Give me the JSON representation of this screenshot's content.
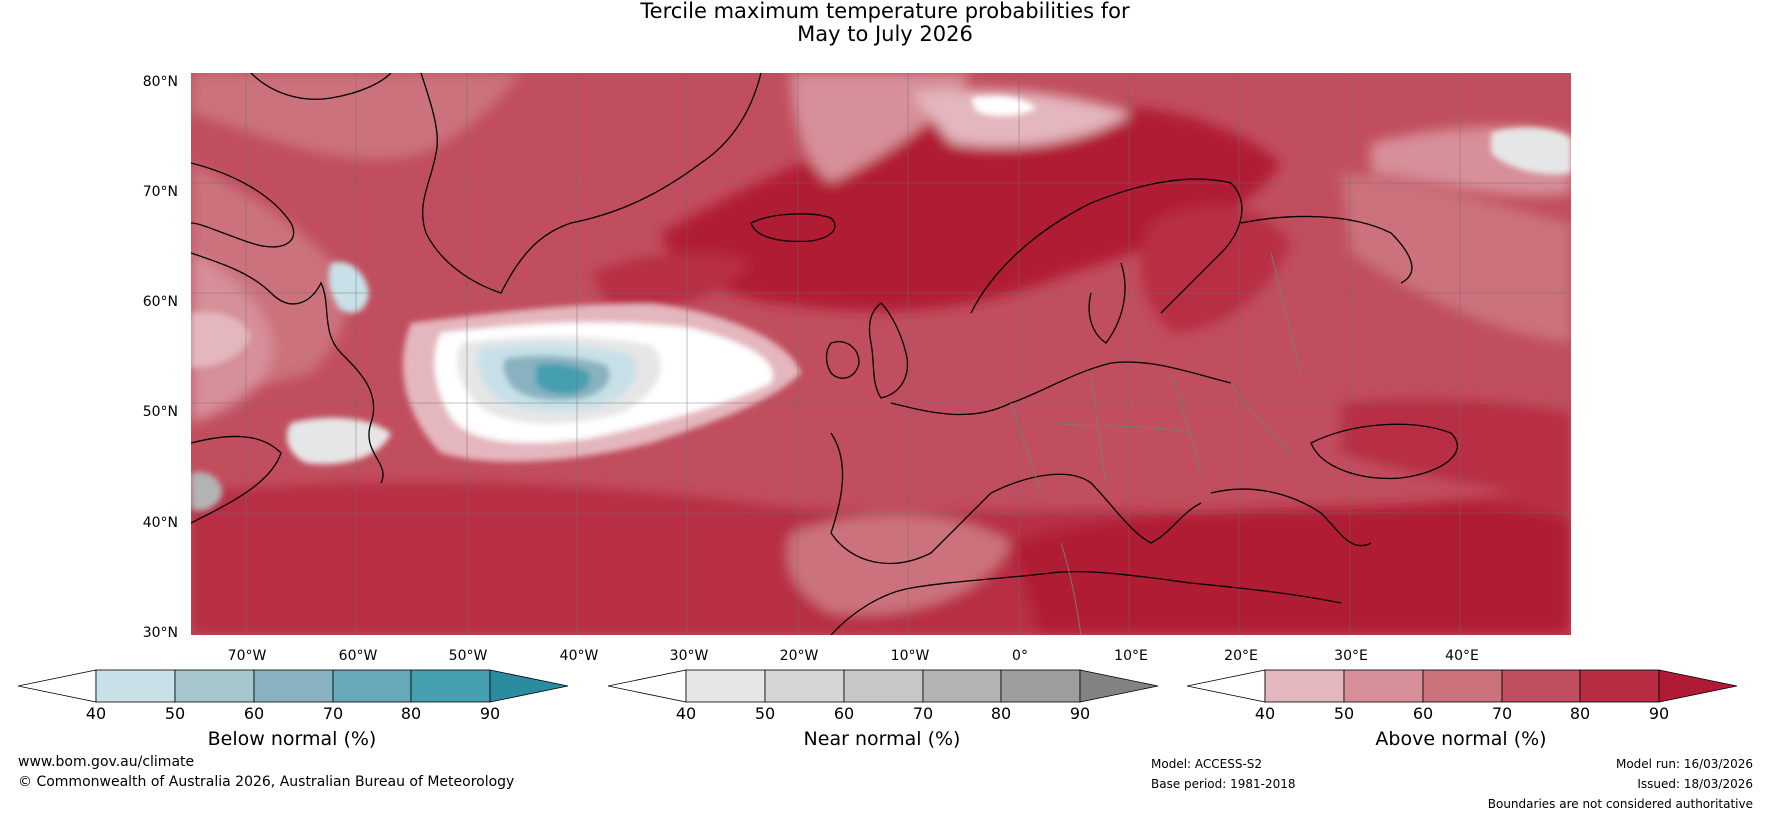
{
  "title": {
    "line1": "Tercile maximum temperature probabilities for",
    "line2": "May to July 2026"
  },
  "map": {
    "latitude_labels": [
      "80°N",
      "70°N",
      "60°N",
      "50°N",
      "40°N",
      "30°N"
    ],
    "longitude_labels": [
      "70°W",
      "60°W",
      "50°W",
      "40°W",
      "30°W",
      "20°W",
      "10°W",
      "0°",
      "10°E",
      "20°E",
      "30°E",
      "40°E"
    ],
    "region": "North Atlantic and Europe",
    "lat_range": [
      30,
      80
    ],
    "lon_range": [
      -75,
      50
    ]
  },
  "colorbars": [
    {
      "id": "below",
      "label": "Below normal (%)",
      "ticks": [
        "40",
        "50",
        "60",
        "70",
        "80",
        "90"
      ],
      "colors": [
        "#ffffff",
        "#c8e1e8",
        "#a6c5cd",
        "#88b2c0",
        "#67a9b8",
        "#459fb1",
        "#2b8ca0"
      ]
    },
    {
      "id": "near",
      "label": "Near normal (%)",
      "ticks": [
        "40",
        "50",
        "60",
        "70",
        "80",
        "90"
      ],
      "colors": [
        "#ffffff",
        "#e6e6e6",
        "#d6d6d6",
        "#c7c7c7",
        "#b3b3b3",
        "#9e9e9e",
        "#828282"
      ]
    },
    {
      "id": "above",
      "label": "Above normal (%)",
      "ticks": [
        "40",
        "50",
        "60",
        "70",
        "80",
        "90"
      ],
      "colors": [
        "#ffffff",
        "#e4b6bd",
        "#d78f99",
        "#cb727c",
        "#c14e5e",
        "#b72e44",
        "#b11a36"
      ]
    }
  ],
  "footer": {
    "website": "www.bom.gov.au/climate",
    "copyright": "© Commonwealth of Australia 2026, Australian Bureau of Meteorology",
    "model": "Model: ACCESS-S2",
    "base_period": "Base period: 1981-2018",
    "model_run": "Model run: 16/03/2026",
    "issued": "Issued: 18/03/2026",
    "disclaimer": "Boundaries are not considered authoritative"
  }
}
